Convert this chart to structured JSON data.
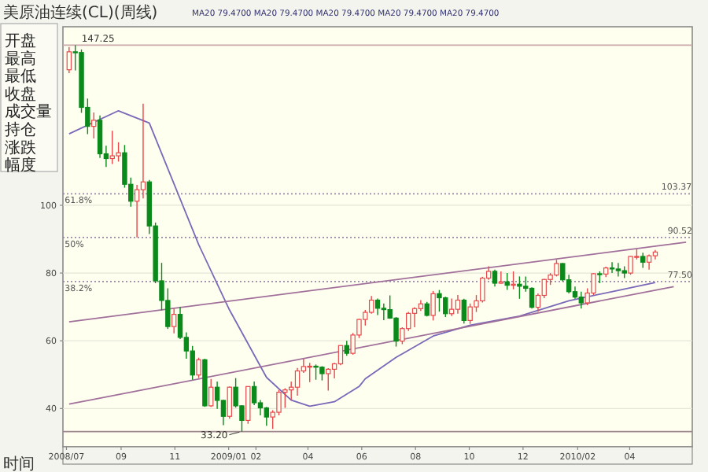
{
  "chart_data": {
    "type": "candlestick",
    "title": "美原油连续(CL)(周线)",
    "subtitle": "MA20 79.4700  MA20 79.4700  MA20 79.4700  MA20 79.4700  MA20 79.4700",
    "xlabel": "时间",
    "x": [
      "2008-07-04",
      "2008-07-11",
      "2008-07-18",
      "2008-07-25",
      "2008-08-01",
      "2008-08-08",
      "2008-08-15",
      "2008-08-22",
      "2008-08-29",
      "2008-09-05",
      "2008-09-12",
      "2008-09-19",
      "2008-09-26",
      "2008-10-03",
      "2008-10-10",
      "2008-10-17",
      "2008-10-24",
      "2008-10-31",
      "2008-11-07",
      "2008-11-14",
      "2008-11-21",
      "2008-11-28",
      "2008-12-05",
      "2008-12-12",
      "2008-12-19",
      "2008-12-26",
      "2009-01-02",
      "2009-01-09",
      "2009-01-16",
      "2009-01-23",
      "2009-01-30",
      "2009-02-06",
      "2009-02-13",
      "2009-02-20",
      "2009-02-27",
      "2009-03-06",
      "2009-03-13",
      "2009-03-20",
      "2009-03-27",
      "2009-04-03",
      "2009-04-10",
      "2009-04-17",
      "2009-04-24",
      "2009-05-01",
      "2009-05-08",
      "2009-05-15",
      "2009-05-22",
      "2009-05-29",
      "2009-06-05",
      "2009-06-12",
      "2009-06-19",
      "2009-06-26",
      "2009-07-03",
      "2009-07-10",
      "2009-07-17",
      "2009-07-24",
      "2009-07-31",
      "2009-08-07",
      "2009-08-14",
      "2009-08-21",
      "2009-08-28",
      "2009-09-04",
      "2009-09-11",
      "2009-09-18",
      "2009-09-25",
      "2009-10-02",
      "2009-10-09",
      "2009-10-16",
      "2009-10-23",
      "2009-10-30",
      "2009-11-06",
      "2009-11-13",
      "2009-11-20",
      "2009-11-27",
      "2009-12-04",
      "2009-12-11",
      "2009-12-18",
      "2009-12-25",
      "2010-01-01",
      "2010-01-08",
      "2010-01-15",
      "2010-01-22",
      "2010-01-29",
      "2010-02-05",
      "2010-02-12",
      "2010-02-19",
      "2010-02-26",
      "2010-03-05",
      "2010-03-12",
      "2010-03-19",
      "2010-03-26",
      "2010-04-02",
      "2010-04-09",
      "2010-04-16",
      "2010-04-23",
      "2010-04-30"
    ],
    "ohlc": [
      [
        140.0,
        146.7,
        139.0,
        145.3
      ],
      [
        145.3,
        147.25,
        139.8,
        145.1
      ],
      [
        145.1,
        146.0,
        127.3,
        128.9
      ],
      [
        128.9,
        131.5,
        121.0,
        123.3
      ],
      [
        123.3,
        127.4,
        119.7,
        125.1
      ],
      [
        125.1,
        126.5,
        114.0,
        115.2
      ],
      [
        115.2,
        117.6,
        111.3,
        113.8
      ],
      [
        113.8,
        122.0,
        112.2,
        114.6
      ],
      [
        114.6,
        118.6,
        112.9,
        115.5
      ],
      [
        115.5,
        117.8,
        105.2,
        106.2
      ],
      [
        106.2,
        108.2,
        99.6,
        101.2
      ],
      [
        101.2,
        106.0,
        90.5,
        104.6
      ],
      [
        104.6,
        130.0,
        102.0,
        106.9
      ],
      [
        106.9,
        107.5,
        91.5,
        93.9
      ],
      [
        93.9,
        94.9,
        77.0,
        77.7
      ],
      [
        77.7,
        83.0,
        69.0,
        71.9
      ],
      [
        71.9,
        75.5,
        63.5,
        64.2
      ],
      [
        64.2,
        69.5,
        62.2,
        67.8
      ],
      [
        67.8,
        70.0,
        60.5,
        61.0
      ],
      [
        61.0,
        62.5,
        54.7,
        57.0
      ],
      [
        57.0,
        58.5,
        48.5,
        49.9
      ],
      [
        49.9,
        55.0,
        49.0,
        54.4
      ],
      [
        54.4,
        54.7,
        40.5,
        40.8
      ],
      [
        40.8,
        48.7,
        40.5,
        46.3
      ],
      [
        46.3,
        48.0,
        39.9,
        42.4
      ],
      [
        42.4,
        42.6,
        35.1,
        37.7
      ],
      [
        37.7,
        46.5,
        37.0,
        46.3
      ],
      [
        46.3,
        49.0,
        40.3,
        40.8
      ],
      [
        40.8,
        41.0,
        33.2,
        36.5
      ],
      [
        36.5,
        46.5,
        35.5,
        46.5
      ],
      [
        46.5,
        48.0,
        41.0,
        41.7
      ],
      [
        41.7,
        42.5,
        38.0,
        40.2
      ],
      [
        40.2,
        40.5,
        34.9,
        37.5
      ],
      [
        37.5,
        39.5,
        34.0,
        38.9
      ],
      [
        38.9,
        45.5,
        38.0,
        44.8
      ],
      [
        44.8,
        46.0,
        40.2,
        45.5
      ],
      [
        45.5,
        48.0,
        42.5,
        46.3
      ],
      [
        46.3,
        52.0,
        43.8,
        51.1
      ],
      [
        51.1,
        54.7,
        50.5,
        52.4
      ],
      [
        52.4,
        53.5,
        47.8,
        52.5
      ],
      [
        52.5,
        53.0,
        48.5,
        52.2
      ],
      [
        52.2,
        52.5,
        48.3,
        50.3
      ],
      [
        50.3,
        51.9,
        45.3,
        51.6
      ],
      [
        51.6,
        53.5,
        48.9,
        53.2
      ],
      [
        53.2,
        58.6,
        52.8,
        58.6
      ],
      [
        58.6,
        60.0,
        55.6,
        56.3
      ],
      [
        56.3,
        62.3,
        55.9,
        61.7
      ],
      [
        61.7,
        66.5,
        60.8,
        66.3
      ],
      [
        66.3,
        69.1,
        64.5,
        68.4
      ],
      [
        68.4,
        73.2,
        68.0,
        72.0
      ],
      [
        72.0,
        72.5,
        67.6,
        69.6
      ],
      [
        69.6,
        71.0,
        66.1,
        69.2
      ],
      [
        69.2,
        73.4,
        66.5,
        66.7
      ],
      [
        66.7,
        67.0,
        58.3,
        59.9
      ],
      [
        59.9,
        64.0,
        59.0,
        63.6
      ],
      [
        63.6,
        68.5,
        62.9,
        68.1
      ],
      [
        68.1,
        69.9,
        64.0,
        69.5
      ],
      [
        69.5,
        72.0,
        68.8,
        70.9
      ],
      [
        70.9,
        71.5,
        67.2,
        67.5
      ],
      [
        67.5,
        74.7,
        66.0,
        73.9
      ],
      [
        73.9,
        75.0,
        68.6,
        72.7
      ],
      [
        72.7,
        73.0,
        67.0,
        68.0
      ],
      [
        68.0,
        72.5,
        67.3,
        69.3
      ],
      [
        69.3,
        73.5,
        68.0,
        72.0
      ],
      [
        72.0,
        72.4,
        65.1,
        66.0
      ],
      [
        66.0,
        71.0,
        65.0,
        70.0
      ],
      [
        70.0,
        73.5,
        68.5,
        71.8
      ],
      [
        71.8,
        78.9,
        71.3,
        78.5
      ],
      [
        78.5,
        82.0,
        78.0,
        80.5
      ],
      [
        80.5,
        81.0,
        76.0,
        77.0
      ],
      [
        77.0,
        80.5,
        76.8,
        77.4
      ],
      [
        77.4,
        80.0,
        75.0,
        76.4
      ],
      [
        76.4,
        80.5,
        75.2,
        76.7
      ],
      [
        76.7,
        79.0,
        72.4,
        76.1
      ],
      [
        76.1,
        79.0,
        74.5,
        75.5
      ],
      [
        75.5,
        75.8,
        69.5,
        69.9
      ],
      [
        69.9,
        74.0,
        68.6,
        73.4
      ],
      [
        73.4,
        78.3,
        72.6,
        78.1
      ],
      [
        78.1,
        80.0,
        76.5,
        79.4
      ],
      [
        79.4,
        83.9,
        79.0,
        82.8
      ],
      [
        82.8,
        83.0,
        77.5,
        78.0
      ],
      [
        78.0,
        79.5,
        74.0,
        74.5
      ],
      [
        74.5,
        76.0,
        72.4,
        72.9
      ],
      [
        72.9,
        74.5,
        69.5,
        71.2
      ],
      [
        71.2,
        75.5,
        70.5,
        74.1
      ],
      [
        74.1,
        80.0,
        73.5,
        79.8
      ],
      [
        79.8,
        80.5,
        77.0,
        79.7
      ],
      [
        79.7,
        81.9,
        78.8,
        81.5
      ],
      [
        81.5,
        83.2,
        80.0,
        81.2
      ],
      [
        81.2,
        83.0,
        79.0,
        80.7
      ],
      [
        80.7,
        82.0,
        78.5,
        80.0
      ],
      [
        80.0,
        85.0,
        79.5,
        84.9
      ],
      [
        84.9,
        87.0,
        84.0,
        84.9
      ],
      [
        84.9,
        86.0,
        81.5,
        83.2
      ],
      [
        83.2,
        85.5,
        81.0,
        85.1
      ],
      [
        85.1,
        86.8,
        84.0,
        86.2
      ]
    ],
    "series": [
      {
        "type": "line",
        "color": "#7a68b8",
        "x": [
          "2008-07-04",
          "2008-08-29",
          "2008-10-03",
          "2008-11-28",
          "2009-01-02",
          "2009-02-13",
          "2009-03-13",
          "2009-04-03",
          "2009-05-01",
          "2009-05-29",
          "2009-06-05",
          "2009-07-10",
          "2009-08-21",
          "2009-10-02",
          "2009-11-27",
          "2010-01-22",
          "2010-03-19",
          "2010-04-30"
        ],
        "values": [
          121.1,
          127.9,
          124.3,
          88.4,
          69.1,
          49.2,
          42.5,
          40.7,
          42.0,
          46.5,
          48.8,
          55.1,
          61.4,
          64.6,
          67.3,
          71.8,
          74.9,
          77.2
        ]
      },
      {
        "type": "line",
        "color": "#a0709a",
        "x": [
          "2008-07-04",
          "2010-06-04"
        ],
        "values": [
          65.6,
          89.1
        ]
      },
      {
        "type": "line",
        "color": "#a0709a",
        "x": [
          "2008-07-04",
          "2010-05-21"
        ],
        "values": [
          41.3,
          76.0
        ]
      }
    ],
    "xlim": [
      "2008-06-27",
      "2010-06-11"
    ],
    "ylim": [
      28.7,
      152.7
    ],
    "xticks": [
      {
        "value": "2008-07-01",
        "label": "2008/07"
      },
      {
        "value": "2008-09-01",
        "label": "09"
      },
      {
        "value": "2008-11-01",
        "label": "11"
      },
      {
        "value": "2009-01-01",
        "label": "2009/01"
      },
      {
        "value": "2009-02-01",
        "label": "02"
      },
      {
        "value": "2009-04-01",
        "label": "04"
      },
      {
        "value": "2009-06-01",
        "label": "06"
      },
      {
        "value": "2009-08-01",
        "label": "08"
      },
      {
        "value": "2009-10-01",
        "label": "10"
      },
      {
        "value": "2009-12-01",
        "label": "12"
      },
      {
        "value": "2010-02-01",
        "label": "2010/02"
      },
      {
        "value": "2010-04-01",
        "label": "04"
      }
    ],
    "yticks": [
      40,
      60,
      80,
      100
    ],
    "grid": "y",
    "ref_lines": [
      {
        "axis": "y",
        "value": 147.25,
        "color": "#c8a8a8"
      },
      {
        "axis": "y",
        "value": 103.37,
        "color": "#9a88a8",
        "line_style": "dotted"
      },
      {
        "axis": "y",
        "value": 90.52,
        "color": "#9a88a8",
        "line_style": "dotted"
      },
      {
        "axis": "y",
        "value": 77.5,
        "color": "#9a88a8",
        "line_style": "dotted"
      },
      {
        "axis": "y",
        "value": 33.2,
        "color": "#a08890"
      }
    ],
    "annotations": [
      "开盘",
      "最高",
      "最低",
      "收盘",
      "成交量",
      "持仓",
      "涨跌",
      "幅度",
      {
        "text": "147.25",
        "x": "2008-07-11",
        "y": 147.25
      },
      {
        "text": "33.20",
        "x": "2009-01-16",
        "y": 33.2
      },
      {
        "text": "61.8%",
        "x": "2008-06-29",
        "y": 103.37
      },
      {
        "text": "50%",
        "x": "2008-06-29",
        "y": 90.52
      },
      {
        "text": "38.2%",
        "x": "2008-06-29",
        "y": 77.5
      },
      {
        "text": "103.37",
        "x": "2010-05-07",
        "y": 103.37
      },
      {
        "text": "90.52",
        "x": "2010-05-14",
        "y": 90.52
      },
      {
        "text": "77.50",
        "x": "2010-05-14",
        "y": 77.5
      }
    ]
  }
}
